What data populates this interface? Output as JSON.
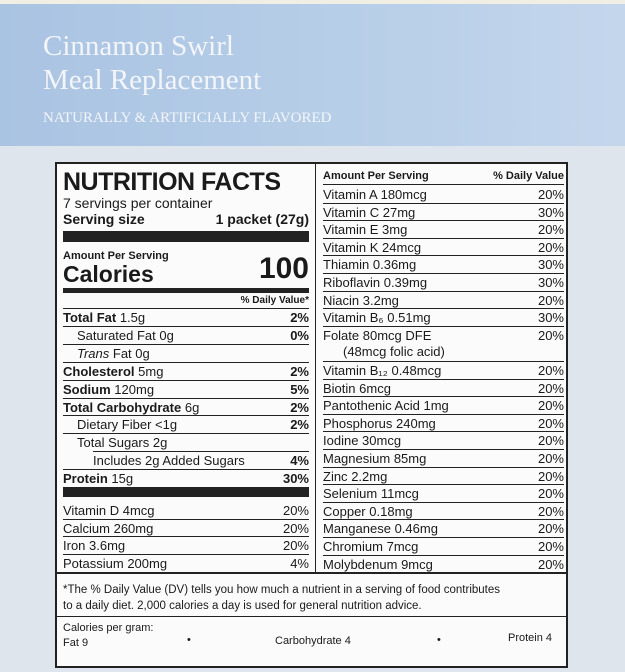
{
  "brand": {
    "title_line1": "Cinnamon Swirl",
    "title_line2": "Meal Replacement",
    "flavor": "NATURALLY & ARTIFICIALLY FLAVORED"
  },
  "facts": {
    "heading": "NUTRITION FACTS",
    "servings": "7 servings per container",
    "serving_size_label": "Serving size",
    "serving_size_value": "1 packet (27g)",
    "amount_per_serving": "Amount Per Serving",
    "calories_label": "Calories",
    "calories_value": "100",
    "dv_header": "% Daily Value*",
    "rows": [
      {
        "name": "Total Fat",
        "amount": "1.5g",
        "dv": "2%"
      },
      {
        "name": "Saturated Fat",
        "amount": "0g",
        "dv": "0%"
      },
      {
        "name": "Trans",
        "amount": "Fat 0g"
      },
      {
        "name": "Cholesterol",
        "amount": "5mg",
        "dv": "2%"
      },
      {
        "name": "Sodium",
        "amount": "120mg",
        "dv": "5%"
      },
      {
        "name": "Total Carbohydrate",
        "amount": "6g",
        "dv": "2%"
      },
      {
        "name": "Dietary Fiber",
        "amount": "<1g",
        "dv": "2%"
      },
      {
        "name": "Total Sugars",
        "amount": "2g"
      },
      {
        "name": "Includes 2g Added Sugars",
        "dv": "4%"
      },
      {
        "name": "Protein",
        "amount": "15g",
        "dv": "30%"
      }
    ],
    "minerals": [
      {
        "name": "Vitamin D",
        "amount": "4mcg",
        "dv": "20%"
      },
      {
        "name": "Calcium",
        "amount": "260mg",
        "dv": "20%"
      },
      {
        "name": "Iron",
        "amount": "3.6mg",
        "dv": "20%"
      },
      {
        "name": "Potassium",
        "amount": "200mg",
        "dv": "4%"
      }
    ]
  },
  "vitamins": {
    "amount_header": "Amount Per Serving",
    "dv_header": "% Daily Value",
    "rows": [
      {
        "name": "Vitamin A",
        "amount": "180mcg",
        "dv": "20%"
      },
      {
        "name": "Vitamin C",
        "amount": "27mg",
        "dv": "30%"
      },
      {
        "name": "Vitamin E",
        "amount": "3mg",
        "dv": "20%"
      },
      {
        "name": "Vitamin K",
        "amount": "24mcg",
        "dv": "20%"
      },
      {
        "name": "Thiamin",
        "amount": "0.36mg",
        "dv": "30%"
      },
      {
        "name": "Riboflavin",
        "amount": "0.39mg",
        "dv": "30%"
      },
      {
        "name": "Niacin",
        "amount": "3.2mg",
        "dv": "20%"
      },
      {
        "name": "Vitamin B₆",
        "amount": "0.51mg",
        "dv": "30%"
      },
      {
        "name": "Folate",
        "amount": "80mcg DFE",
        "dv": "20%",
        "note": "(48mcg folic acid)"
      },
      {
        "name": "Vitamin B₁₂",
        "amount": "0.48mcg",
        "dv": "20%"
      },
      {
        "name": "Biotin",
        "amount": "6mcg",
        "dv": "20%"
      },
      {
        "name": "Pantothenic Acid",
        "amount": "1mg",
        "dv": "20%"
      },
      {
        "name": "Phosphorus",
        "amount": "240mg",
        "dv": "20%"
      },
      {
        "name": "Iodine",
        "amount": "30mcg",
        "dv": "20%"
      },
      {
        "name": "Magnesium",
        "amount": "85mg",
        "dv": "20%"
      },
      {
        "name": "Zinc",
        "amount": "2.2mg",
        "dv": "20%"
      },
      {
        "name": "Selenium",
        "amount": "11mcg",
        "dv": "20%"
      },
      {
        "name": "Copper",
        "amount": "0.18mg",
        "dv": "20%"
      },
      {
        "name": "Manganese",
        "amount": "0.46mg",
        "dv": "20%"
      },
      {
        "name": "Chromium",
        "amount": "7mcg",
        "dv": "20%"
      },
      {
        "name": "Molybdenum",
        "amount": "9mcg",
        "dv": "20%"
      }
    ]
  },
  "footnote": {
    "line1": "*The % Daily Value (DV) tells you how much a nutrient in a serving of food contributes",
    "line2": "to a daily diet. 2,000 calories a day is used for general nutrition advice.",
    "calories_per_gram": "Calories per gram:",
    "fat": "Fat 9",
    "carbohydrate": "Carbohydrate 4",
    "protein": "Protein 4"
  }
}
